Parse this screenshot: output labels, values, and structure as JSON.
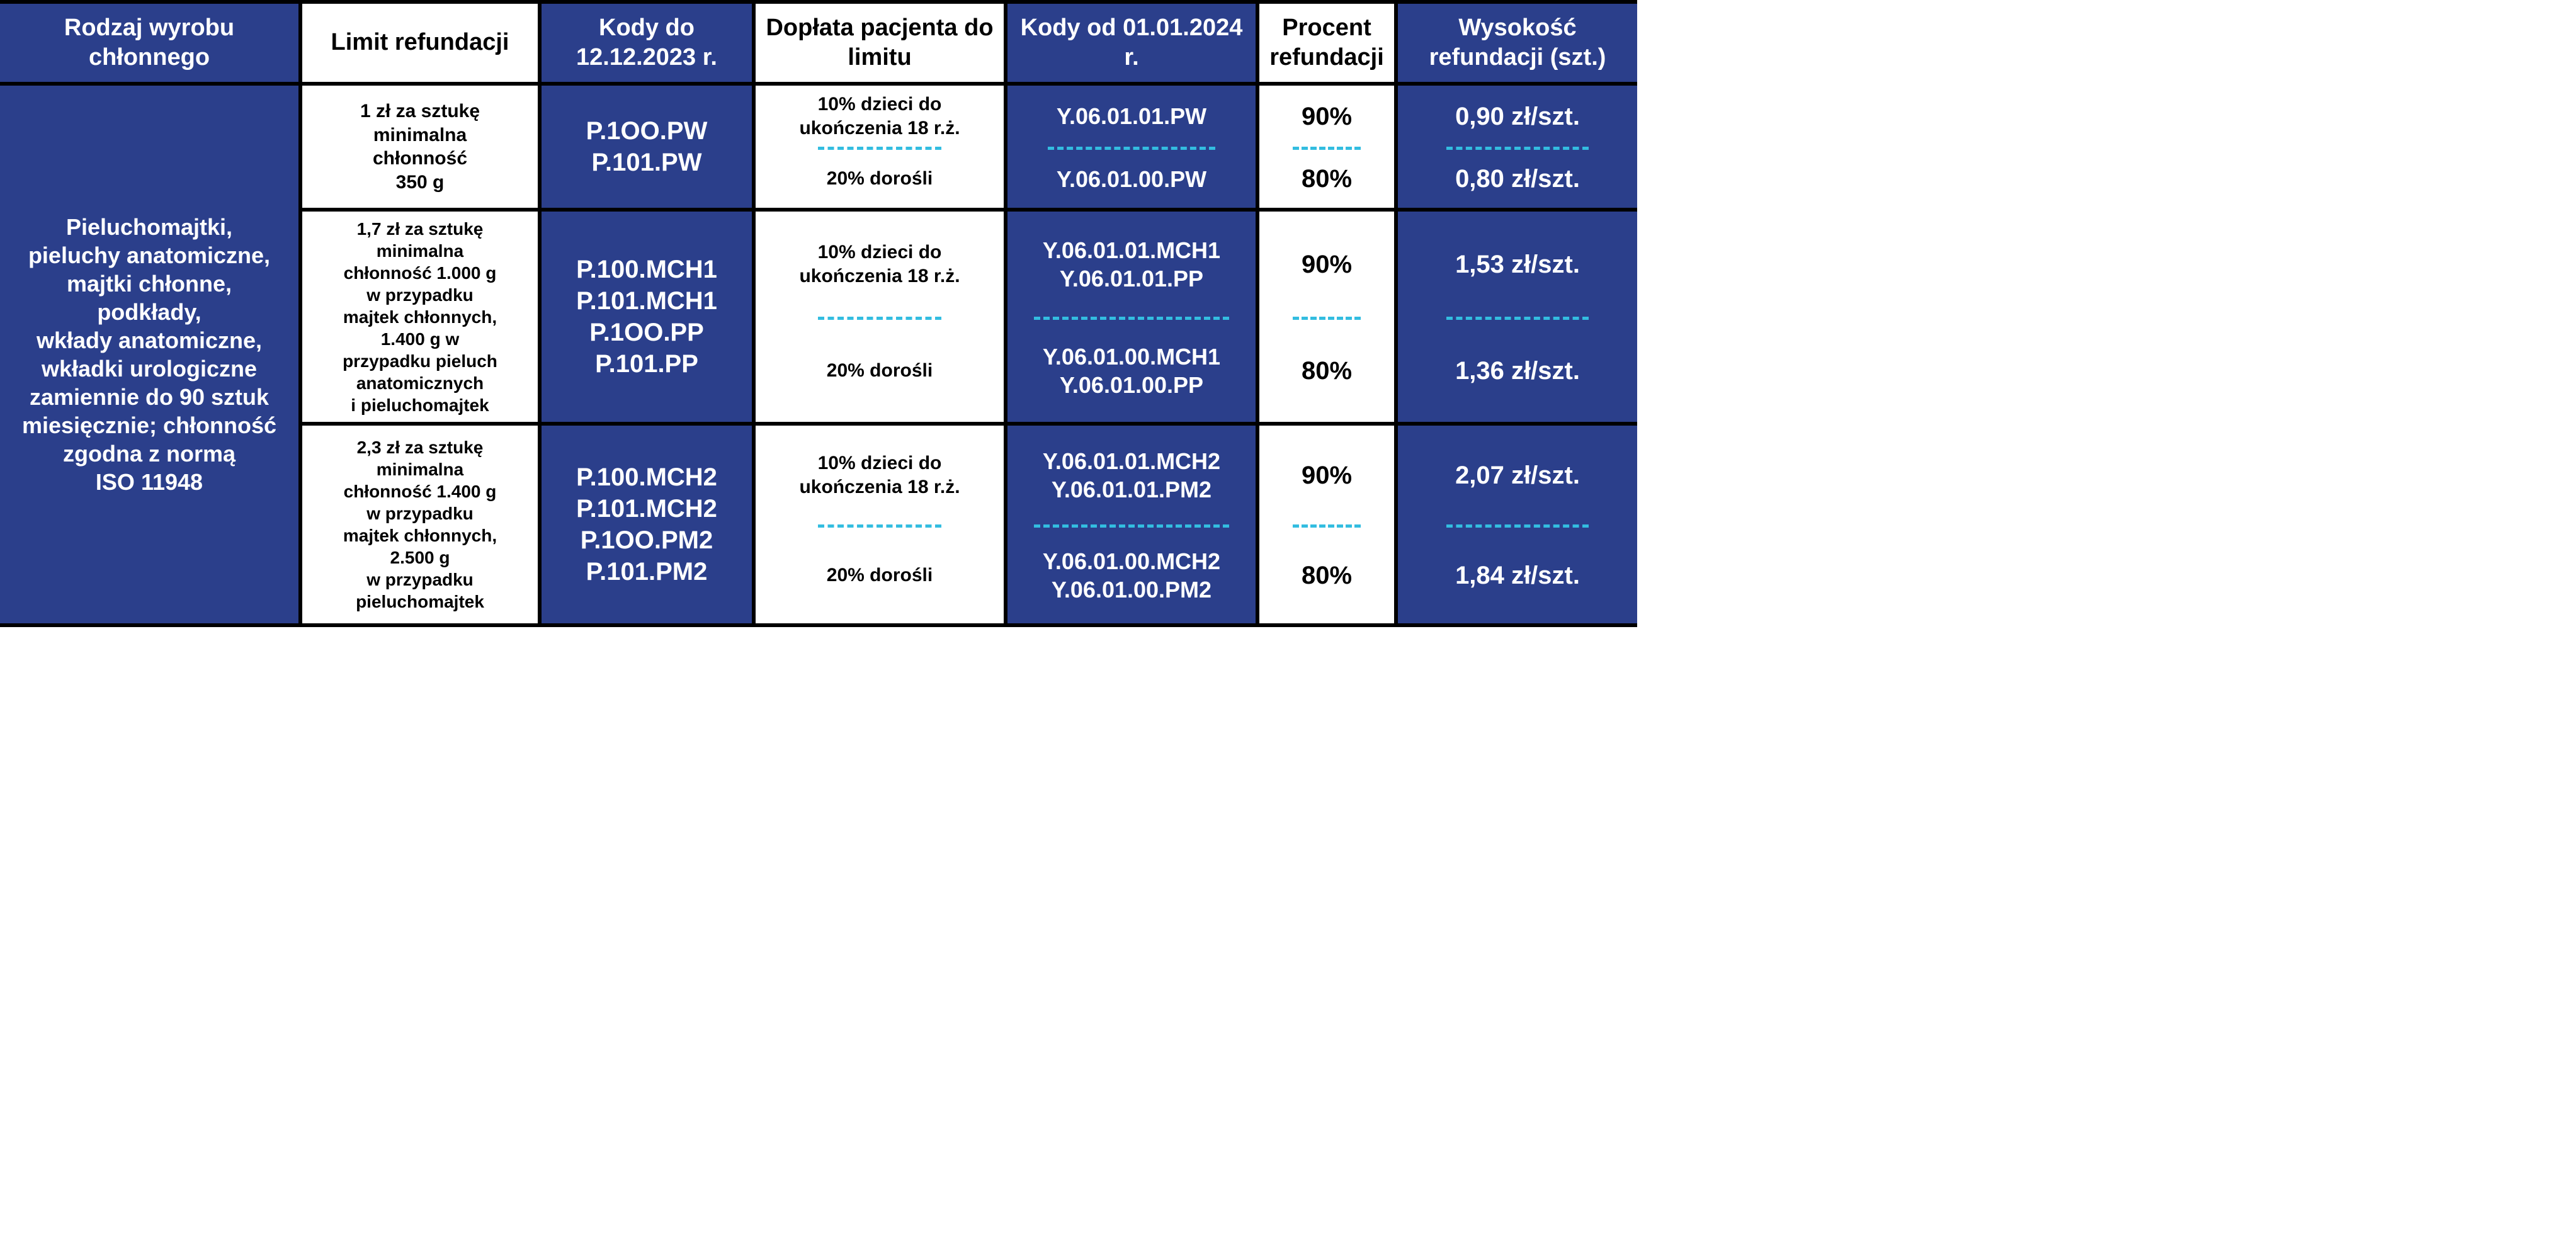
{
  "headers": {
    "c1": "Rodzaj wyrobu chłonnego",
    "c2": "Limit refundacji",
    "c3": "Kody do 12.12.2023 r.",
    "c4": "Dopłata pacjenta do limitu",
    "c5": "Kody od 01.01.2024 r.",
    "c6": "Procent refundacji",
    "c7": "Wysokość refundacji (szt.)"
  },
  "leftDesc": {
    "l1": "Pieluchomajtki,",
    "l2": "pieluchy anatomiczne,",
    "l3": "majtki chłonne,",
    "l4": "podkłady,",
    "l5": "wkłady anatomiczne,",
    "l6": "wkładki urologiczne",
    "l7": "zamiennie do 90 sztuk",
    "l8": "miesięcznie; chłonność",
    "l9": "zgodna z normą",
    "l10": "ISO 11948"
  },
  "common": {
    "kids": "10% dzieci do ukończenia 18 r.ż.",
    "adults": "20% dorośli"
  },
  "group1": {
    "limit_l1": "1 zł za sztukę",
    "limit_l2": "minimalna",
    "limit_l3": "chłonność",
    "limit_l4": "350 g",
    "oldCodes_l1": "P.1OO.PW",
    "oldCodes_l2": "P.101.PW",
    "newCodes_kids": "Y.06.01.01.PW",
    "newCodes_adults": "Y.06.01.00.PW",
    "pct_kids": "90%",
    "pct_adults": "80%",
    "amt_kids": "0,90 zł/szt.",
    "amt_adults": "0,80 zł/szt."
  },
  "group2": {
    "limit_l1": "1,7 zł za sztukę",
    "limit_l2": "minimalna",
    "limit_l3": "chłonność 1.000 g",
    "limit_l4": "w przypadku",
    "limit_l5": "majtek chłonnych,",
    "limit_l6": "1.400 g w",
    "limit_l7": "przypadku pieluch",
    "limit_l8": "anatomicznych",
    "limit_l9": "i pieluchomajtek",
    "oldCodes_l1": "P.100.MCH1",
    "oldCodes_l2": "P.101.MCH1",
    "oldCodes_l3": "P.1OO.PP",
    "oldCodes_l4": "P.101.PP",
    "newCodes_kids_l1": "Y.06.01.01.MCH1",
    "newCodes_kids_l2": "Y.06.01.01.PP",
    "newCodes_adults_l1": "Y.06.01.00.MCH1",
    "newCodes_adults_l2": "Y.06.01.00.PP",
    "pct_kids": "90%",
    "pct_adults": "80%",
    "amt_kids": "1,53 zł/szt.",
    "amt_adults": "1,36 zł/szt."
  },
  "group3": {
    "limit_l1": "2,3 zł za sztukę",
    "limit_l2": "minimalna",
    "limit_l3": "chłonność 1.400 g",
    "limit_l4": "w przypadku",
    "limit_l5": "majtek chłonnych,",
    "limit_l6": "2.500 g",
    "limit_l7": "w przypadku",
    "limit_l8": "pieluchomajtek",
    "oldCodes_l1": "P.100.MCH2",
    "oldCodes_l2": "P.101.MCH2",
    "oldCodes_l3": "P.1OO.PM2",
    "oldCodes_l4": "P.101.PM2",
    "newCodes_kids_l1": "Y.06.01.01.MCH2",
    "newCodes_kids_l2": "Y.06.01.01.PM2",
    "newCodes_adults_l1": "Y.06.01.00.MCH2",
    "newCodes_adults_l2": "Y.06.01.00.PM2",
    "pct_kids": "90%",
    "pct_adults": "80%",
    "amt_kids": "2,07 zł/szt.",
    "amt_adults": "1,84 zł/szt."
  },
  "style": {
    "blue": "#2b3f8b",
    "dash": "#33bde0",
    "black": "#000000",
    "white": "#ffffff"
  }
}
